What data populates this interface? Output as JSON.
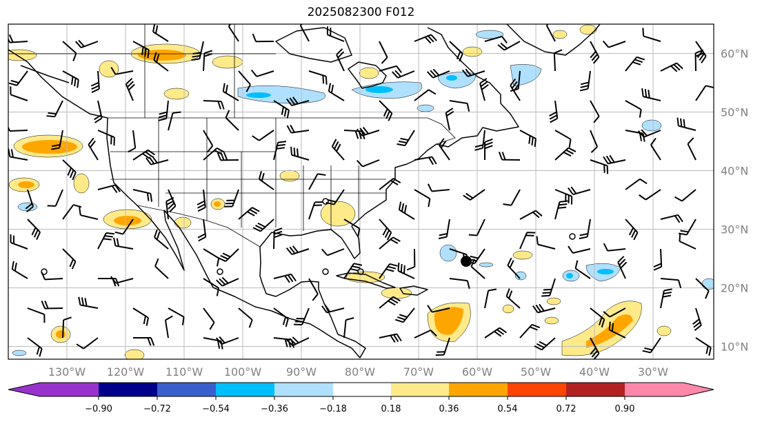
{
  "title": "2025082300 F012",
  "map": {
    "extent_lon": [
      -140,
      -20
    ],
    "extent_lat": [
      8,
      65
    ],
    "lon_labels": [
      "130°W",
      "120°W",
      "110°W",
      "100°W",
      "90°W",
      "80°W",
      "70°W",
      "60°W",
      "50°W",
      "40°W",
      "30°W"
    ],
    "lat_labels": [
      "60°N",
      "50°N",
      "40°N",
      "30°N",
      "20°N",
      "10°N"
    ]
  },
  "colorbar": {
    "ticks": [
      "−0.90",
      "−0.72",
      "−0.54",
      "−0.36",
      "−0.18",
      "0.18",
      "0.36",
      "0.54",
      "0.72",
      "0.90"
    ],
    "colors": [
      "#9932cc",
      "#00008b",
      "#3a5fcd",
      "#00bfff",
      "#b0e0ff",
      "#ffffff",
      "#ffea8a",
      "#ffa500",
      "#ff4500",
      "#b22222",
      "#ff88aa"
    ]
  }
}
